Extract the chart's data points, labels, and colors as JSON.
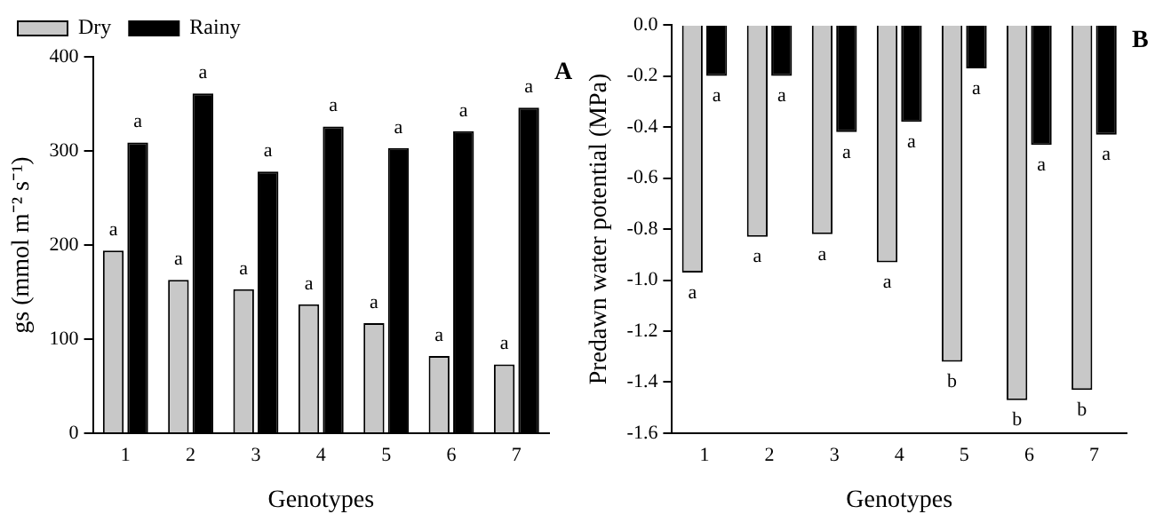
{
  "chart_data": [
    {
      "type": "bar",
      "xlabel": "Genotypes",
      "ylabel": "gs (mmol m⁻² s⁻¹)",
      "categories": [
        "1",
        "2",
        "3",
        "4",
        "5",
        "6",
        "7"
      ],
      "ylim": [
        0,
        400
      ],
      "yticks": [
        0,
        100,
        200,
        300,
        400
      ],
      "grid": false,
      "legend": "top left",
      "annotations": [
        "A"
      ],
      "series": [
        {
          "name": "Dry",
          "color": "#c8c8c8",
          "values": [
            194,
            163,
            153,
            137,
            117,
            82,
            73
          ],
          "value_labels": [
            "a",
            "a",
            "a",
            "a",
            "a",
            "a",
            "a"
          ]
        },
        {
          "name": "Rainy",
          "color": "#000000",
          "values": [
            309,
            361,
            278,
            326,
            303,
            321,
            346
          ],
          "value_labels": [
            "a",
            "a",
            "a",
            "a",
            "a",
            "a",
            "a"
          ]
        }
      ]
    },
    {
      "type": "bar",
      "xlabel": "Genotypes",
      "ylabel": "Predawn water potential (MPa)",
      "categories": [
        "1",
        "2",
        "3",
        "4",
        "5",
        "6",
        "7"
      ],
      "ylim": [
        -1.6,
        0
      ],
      "yticks": [
        {
          "value": -1.6,
          "label": "-1.6"
        },
        {
          "value": -1.4,
          "label": "-1.4"
        },
        {
          "value": -1.2,
          "label": "-1.2"
        },
        {
          "value": -1.0,
          "label": "-1.0"
        },
        {
          "value": -0.8,
          "label": "-0.8"
        },
        {
          "value": -0.6,
          "label": "-0.6"
        },
        {
          "value": -0.4,
          "label": "-0.4"
        },
        {
          "value": -0.2,
          "label": "-0.2"
        },
        {
          "value": 0,
          "label": "0.0"
        }
      ],
      "grid": false,
      "legend": false,
      "annotations": [
        "B"
      ],
      "series": [
        {
          "color": "#c8c8c8",
          "values": [
            -0.97,
            -0.83,
            -0.82,
            -0.93,
            -1.32,
            -1.47,
            -1.43
          ],
          "value_labels": [
            "a",
            "a",
            "a",
            "a",
            "b",
            "b",
            "b"
          ]
        },
        {
          "color": "#000000",
          "values": [
            -0.2,
            -0.2,
            -0.42,
            -0.38,
            -0.17,
            -0.47,
            -0.43
          ],
          "value_labels": [
            "a",
            "a",
            "a",
            "a",
            "a",
            "a",
            "a"
          ]
        }
      ]
    }
  ]
}
